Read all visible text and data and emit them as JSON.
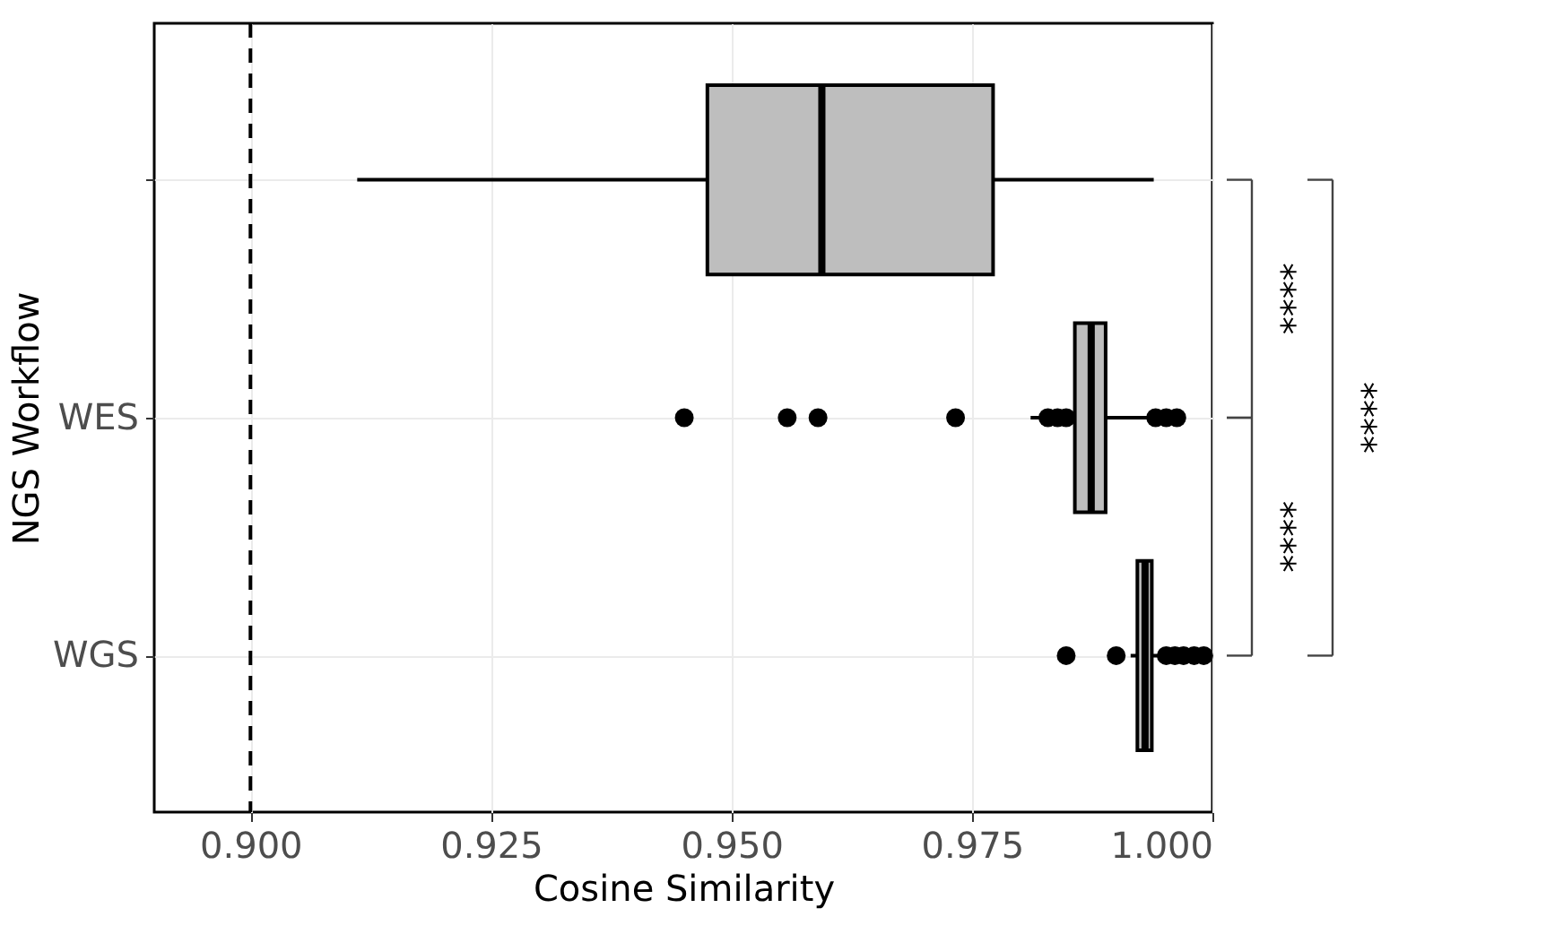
{
  "chart_data": {
    "type": "box",
    "categories": [
      null,
      "WES",
      "WGS"
    ],
    "orientation": "horizontal",
    "boxes": [
      {
        "low": 0.9111,
        "q1": 0.9475,
        "median": 0.9594,
        "q3": 0.9772,
        "high": 0.9939
      },
      {
        "low": 0.9811,
        "q1": 0.9857,
        "median": 0.9874,
        "q3": 0.9889,
        "high": 0.9937,
        "outliers": [
          0.9451,
          0.9558,
          0.959,
          0.9733,
          0.9829,
          0.9839,
          0.9848,
          0.9941,
          0.9952,
          0.9963
        ]
      },
      {
        "low": 0.9915,
        "q1": 0.9922,
        "median": 0.993,
        "q3": 0.9937,
        "high": 0.9945,
        "outliers": [
          0.9848,
          0.99,
          0.9952,
          0.9961,
          0.997,
          0.9981,
          0.9991
        ]
      }
    ],
    "color": "#bebebe",
    "xlabel": "Cosine Similarity",
    "ylabel": "NGS Workflow",
    "xlim": [
      0.89,
      1.0
    ],
    "xticks": [
      {
        "value": 0.9,
        "label": "0.900"
      },
      {
        "value": 0.925,
        "label": "0.925"
      },
      {
        "value": 0.95,
        "label": "0.950"
      },
      {
        "value": 0.975,
        "label": "0.975"
      },
      {
        "value": 1.0,
        "label": "1.000"
      }
    ],
    "ref_lines": [
      {
        "axis": "x",
        "value": 0.9,
        "line_style": "dashed",
        "color": "#000000"
      }
    ],
    "annotations": [
      "****",
      "****",
      "****"
    ],
    "grid": true
  }
}
